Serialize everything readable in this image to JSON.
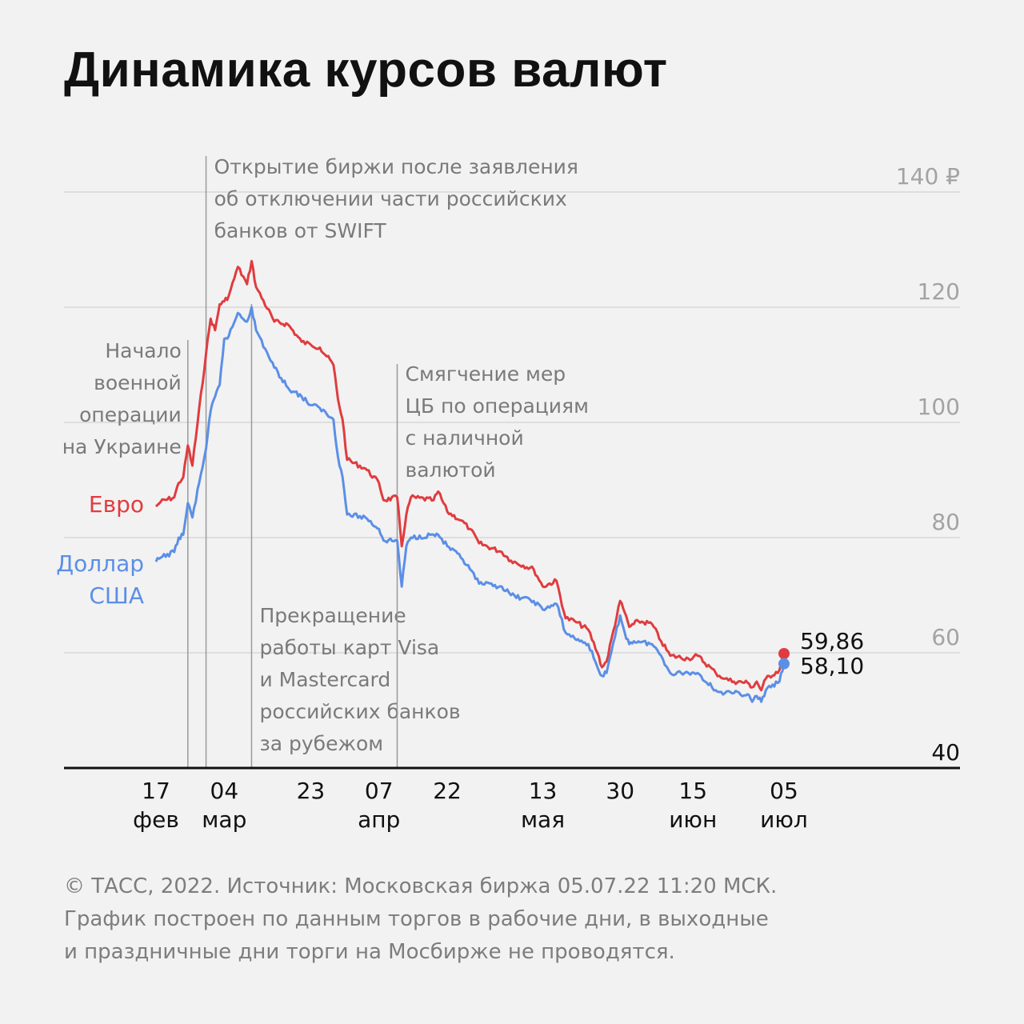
{
  "title": "Динамика курсов валют",
  "footer": [
    "© ТАСС, 2022. Источник: Московская биржа 05.07.22 11:20 МСК.",
    "График построен по данным торгов в рабочие дни, в выходные",
    "и праздничные дни торги на Мосбирже не проводятся."
  ],
  "colors": {
    "euro": "#e03c3f",
    "dollar": "#5b8fe6",
    "background": "#f2f2f2",
    "gridline": "#d8d8d8",
    "tick_label": "#a3a3a3",
    "annotation": "#7a7a7a",
    "axis": "#111111"
  },
  "chart_data": {
    "type": "line",
    "y_unit": "₽",
    "ylim": [
      40,
      140
    ],
    "yticks": [
      {
        "value": 40,
        "label": "40"
      },
      {
        "value": 60,
        "label": "60"
      },
      {
        "value": 80,
        "label": "80"
      },
      {
        "value": 100,
        "label": "100"
      },
      {
        "value": 120,
        "label": "120"
      },
      {
        "value": 140,
        "label": "140 ₽"
      }
    ],
    "xlim": [
      "2022-02-16",
      "2022-07-05"
    ],
    "xticks": [
      {
        "date": "2022-02-17",
        "day": "17",
        "month": "фев"
      },
      {
        "date": "2022-03-04",
        "day": "04",
        "month": "мар"
      },
      {
        "date": "2022-03-23",
        "day": "23",
        "month": ""
      },
      {
        "date": "2022-04-07",
        "day": "07",
        "month": "апр"
      },
      {
        "date": "2022-04-22",
        "day": "22",
        "month": ""
      },
      {
        "date": "2022-05-13",
        "day": "13",
        "month": "мая"
      },
      {
        "date": "2022-05-30",
        "day": "30",
        "month": ""
      },
      {
        "date": "2022-06-15",
        "day": "15",
        "month": "июн"
      },
      {
        "date": "2022-07-05",
        "day": "05",
        "month": "июл"
      }
    ],
    "grid": "horizontal",
    "series": [
      {
        "name": "Евро",
        "label_lines": [
          "Евро"
        ],
        "color": "#e03c3f",
        "last_value": 59.86,
        "last_label": "59,86",
        "points": [
          [
            "2022-02-17",
            85.4
          ],
          [
            "2022-02-18",
            86.2
          ],
          [
            "2022-02-21",
            87.0
          ],
          [
            "2022-02-22",
            89.5
          ],
          [
            "2022-02-23",
            90.5
          ],
          [
            "2022-02-24",
            96.0
          ],
          [
            "2022-02-25",
            92.5
          ],
          [
            "2022-02-28",
            112.0
          ],
          [
            "2022-03-01",
            118.0
          ],
          [
            "2022-03-02",
            116.0
          ],
          [
            "2022-03-03",
            120.5
          ],
          [
            "2022-03-04",
            121.0
          ],
          [
            "2022-03-05",
            122.0
          ],
          [
            "2022-03-07",
            127.0
          ],
          [
            "2022-03-09",
            124.0
          ],
          [
            "2022-03-10",
            128.0
          ],
          [
            "2022-03-11",
            123.5
          ],
          [
            "2022-03-15",
            117.5
          ],
          [
            "2022-03-18",
            117.0
          ],
          [
            "2022-03-21",
            114.0
          ],
          [
            "2022-03-23",
            113.5
          ],
          [
            "2022-03-25",
            113.0
          ],
          [
            "2022-03-28",
            110.0
          ],
          [
            "2022-03-29",
            104.0
          ],
          [
            "2022-03-30",
            100.5
          ],
          [
            "2022-03-31",
            93.5
          ],
          [
            "2022-04-04",
            92.0
          ],
          [
            "2022-04-07",
            89.5
          ],
          [
            "2022-04-08",
            86.5
          ],
          [
            "2022-04-11",
            87.0
          ],
          [
            "2022-04-12",
            78.5
          ],
          [
            "2022-04-13",
            84.0
          ],
          [
            "2022-04-14",
            87.0
          ],
          [
            "2022-04-19",
            86.5
          ],
          [
            "2022-04-20",
            88.0
          ],
          [
            "2022-04-22",
            84.5
          ],
          [
            "2022-04-25",
            83.0
          ],
          [
            "2022-04-27",
            81.5
          ],
          [
            "2022-04-29",
            79.0
          ],
          [
            "2022-05-04",
            77.5
          ],
          [
            "2022-05-06",
            76.0
          ],
          [
            "2022-05-11",
            74.5
          ],
          [
            "2022-05-13",
            71.5
          ],
          [
            "2022-05-16",
            72.5
          ],
          [
            "2022-05-18",
            66.0
          ],
          [
            "2022-05-20",
            65.5
          ],
          [
            "2022-05-23",
            64.0
          ],
          [
            "2022-05-25",
            60.0
          ],
          [
            "2022-05-26",
            57.5
          ],
          [
            "2022-05-27",
            58.5
          ],
          [
            "2022-05-30",
            69.0
          ],
          [
            "2022-05-31",
            67.0
          ],
          [
            "2022-06-01",
            64.5
          ],
          [
            "2022-06-02",
            65.0
          ],
          [
            "2022-06-03",
            65.5
          ],
          [
            "2022-06-06",
            65.0
          ],
          [
            "2022-06-08",
            62.0
          ],
          [
            "2022-06-10",
            59.5
          ],
          [
            "2022-06-14",
            59.0
          ],
          [
            "2022-06-16",
            59.5
          ],
          [
            "2022-06-20",
            56.5
          ],
          [
            "2022-06-22",
            55.5
          ],
          [
            "2022-06-24",
            55.0
          ],
          [
            "2022-06-27",
            54.8
          ],
          [
            "2022-06-28",
            54.0
          ],
          [
            "2022-06-29",
            55.0
          ],
          [
            "2022-06-30",
            53.5
          ],
          [
            "2022-07-01",
            55.5
          ],
          [
            "2022-07-04",
            57.0
          ],
          [
            "2022-07-05",
            59.86
          ]
        ]
      },
      {
        "name": "Доллар США",
        "label_lines": [
          "Доллар",
          "США"
        ],
        "color": "#5b8fe6",
        "last_value": 58.1,
        "last_label": "58,10",
        "points": [
          [
            "2022-02-17",
            75.8
          ],
          [
            "2022-02-18",
            76.5
          ],
          [
            "2022-02-21",
            77.5
          ],
          [
            "2022-02-22",
            80.0
          ],
          [
            "2022-02-23",
            80.5
          ],
          [
            "2022-02-24",
            86.0
          ],
          [
            "2022-02-25",
            83.5
          ],
          [
            "2022-02-28",
            95.5
          ],
          [
            "2022-03-01",
            102.0
          ],
          [
            "2022-03-02",
            104.5
          ],
          [
            "2022-03-03",
            106.5
          ],
          [
            "2022-03-04",
            114.5
          ],
          [
            "2022-03-05",
            115.0
          ],
          [
            "2022-03-07",
            119.0
          ],
          [
            "2022-03-09",
            117.5
          ],
          [
            "2022-03-10",
            120.0
          ],
          [
            "2022-03-11",
            116.0
          ],
          [
            "2022-03-15",
            109.5
          ],
          [
            "2022-03-18",
            106.0
          ],
          [
            "2022-03-21",
            104.5
          ],
          [
            "2022-03-23",
            103.0
          ],
          [
            "2022-03-25",
            102.5
          ],
          [
            "2022-03-28",
            100.5
          ],
          [
            "2022-03-29",
            94.0
          ],
          [
            "2022-03-30",
            90.5
          ],
          [
            "2022-03-31",
            84.0
          ],
          [
            "2022-04-04",
            83.5
          ],
          [
            "2022-04-07",
            81.5
          ],
          [
            "2022-04-08",
            79.5
          ],
          [
            "2022-04-11",
            79.5
          ],
          [
            "2022-04-12",
            71.5
          ],
          [
            "2022-04-13",
            78.5
          ],
          [
            "2022-04-14",
            80.0
          ],
          [
            "2022-04-19",
            80.5
          ],
          [
            "2022-04-20",
            80.5
          ],
          [
            "2022-04-22",
            78.5
          ],
          [
            "2022-04-25",
            76.5
          ],
          [
            "2022-04-27",
            74.5
          ],
          [
            "2022-04-29",
            72.0
          ],
          [
            "2022-05-04",
            71.5
          ],
          [
            "2022-05-06",
            70.0
          ],
          [
            "2022-05-11",
            69.0
          ],
          [
            "2022-05-13",
            67.5
          ],
          [
            "2022-05-16",
            68.5
          ],
          [
            "2022-05-18",
            63.5
          ],
          [
            "2022-05-20",
            62.5
          ],
          [
            "2022-05-23",
            61.5
          ],
          [
            "2022-05-25",
            57.5
          ],
          [
            "2022-05-26",
            56.0
          ],
          [
            "2022-05-27",
            56.5
          ],
          [
            "2022-05-30",
            66.5
          ],
          [
            "2022-05-31",
            63.5
          ],
          [
            "2022-06-01",
            61.5
          ],
          [
            "2022-06-02",
            62.0
          ],
          [
            "2022-06-03",
            62.0
          ],
          [
            "2022-06-06",
            61.5
          ],
          [
            "2022-06-08",
            59.5
          ],
          [
            "2022-06-10",
            56.5
          ],
          [
            "2022-06-14",
            56.5
          ],
          [
            "2022-06-16",
            56.5
          ],
          [
            "2022-06-20",
            53.5
          ],
          [
            "2022-06-22",
            53.0
          ],
          [
            "2022-06-24",
            53.0
          ],
          [
            "2022-06-27",
            52.8
          ],
          [
            "2022-06-28",
            51.5
          ],
          [
            "2022-06-29",
            52.5
          ],
          [
            "2022-06-30",
            51.5
          ],
          [
            "2022-07-01",
            53.5
          ],
          [
            "2022-07-04",
            55.0
          ],
          [
            "2022-07-05",
            58.1
          ]
        ]
      }
    ],
    "annotations": [
      {
        "date": "2022-02-24",
        "align": "right",
        "lines": [
          "Начало",
          "военной",
          "операции",
          "на Украине"
        ]
      },
      {
        "date": "2022-02-28",
        "align": "left-top",
        "lines": [
          "Открытие биржи после заявления",
          "об отключении части российских",
          "банков от SWIFT"
        ]
      },
      {
        "date": "2022-03-10",
        "align": "left-bottom",
        "lines": [
          "Прекращение",
          "работы карт Visa",
          "и Mastercard",
          "российских банков",
          "за рубежом"
        ]
      },
      {
        "date": "2022-04-11",
        "align": "left",
        "lines": [
          "Смягчение мер",
          "ЦБ по операциям",
          "с наличной",
          "валютой"
        ]
      }
    ]
  }
}
